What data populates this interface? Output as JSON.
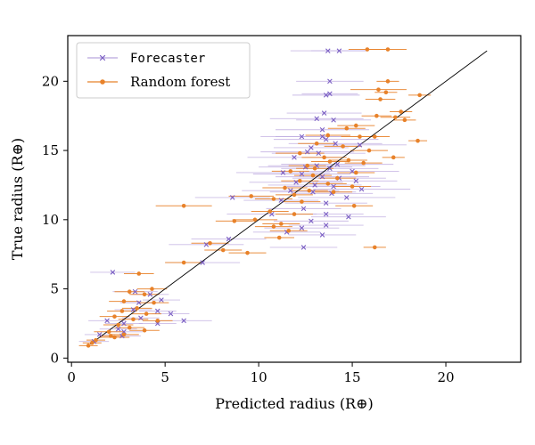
{
  "chart_data": {
    "type": "scatter",
    "xlabel": "Predicted radius (R⊕)",
    "ylabel": "True radius (R⊕)",
    "xlim": [
      -0.2,
      24.0
    ],
    "ylim": [
      -0.3,
      23.3
    ],
    "xticks": [
      0,
      5,
      10,
      15,
      20
    ],
    "yticks": [
      0,
      5,
      10,
      15,
      20
    ],
    "grid": false,
    "legend_position": "top-left",
    "diagonal_line": {
      "from": [
        1,
        1
      ],
      "to": [
        22.2,
        22.2
      ],
      "color": "#000000"
    },
    "series": [
      {
        "name": "Forecaster",
        "marker": "x",
        "color": "#7b5fc4",
        "errorbar_color": "#b9a6de",
        "points": [
          [
            13.7,
            22.2,
            2.0
          ],
          [
            14.3,
            22.2,
            1.5
          ],
          [
            13.8,
            20.0,
            1.8
          ],
          [
            13.6,
            19.0,
            1.8
          ],
          [
            13.8,
            19.1,
            1.5
          ],
          [
            13.5,
            17.7,
            2.0
          ],
          [
            13.1,
            17.3,
            2.5
          ],
          [
            14.0,
            17.2,
            2.0
          ],
          [
            13.4,
            16.5,
            2.5
          ],
          [
            12.3,
            16.0,
            2.2
          ],
          [
            13.4,
            16.0,
            2.5
          ],
          [
            13.6,
            15.8,
            2.8
          ],
          [
            14.1,
            15.5,
            2.5
          ],
          [
            12.8,
            15.2,
            2.0
          ],
          [
            15.4,
            15.4,
            2.5
          ],
          [
            12.6,
            14.9,
            2.5
          ],
          [
            13.2,
            14.8,
            2.5
          ],
          [
            11.9,
            14.5,
            2.5
          ],
          [
            14.2,
            14.0,
            3.0
          ],
          [
            13.1,
            13.9,
            2.6
          ],
          [
            12.5,
            13.8,
            2.5
          ],
          [
            13.8,
            13.7,
            2.6
          ],
          [
            15.0,
            13.5,
            2.5
          ],
          [
            11.3,
            13.4,
            2.5
          ],
          [
            12.3,
            13.3,
            2.6
          ],
          [
            13.4,
            13.1,
            2.5
          ],
          [
            14.3,
            13.0,
            2.5
          ],
          [
            15.2,
            12.8,
            2.2
          ],
          [
            12.0,
            12.7,
            2.5
          ],
          [
            13.0,
            12.5,
            2.5
          ],
          [
            14.0,
            12.4,
            2.5
          ],
          [
            15.5,
            12.2,
            2.6
          ],
          [
            11.7,
            12.1,
            2.6
          ],
          [
            12.9,
            12.0,
            2.3
          ],
          [
            13.9,
            11.9,
            2.2
          ],
          [
            14.7,
            11.6,
            2.6
          ],
          [
            8.6,
            11.6,
            2.0
          ],
          [
            11.2,
            11.4,
            2.0
          ],
          [
            13.6,
            11.2,
            2.2
          ],
          [
            12.4,
            10.8,
            2.0
          ],
          [
            10.7,
            10.4,
            2.4
          ],
          [
            13.6,
            10.4,
            2.0
          ],
          [
            14.8,
            10.2,
            2.0
          ],
          [
            12.8,
            9.9,
            2.0
          ],
          [
            13.6,
            9.6,
            2.0
          ],
          [
            12.3,
            9.4,
            2.0
          ],
          [
            11.5,
            9.1,
            1.8
          ],
          [
            13.4,
            8.9,
            1.8
          ],
          [
            12.4,
            8.0,
            1.8
          ],
          [
            8.4,
            8.6,
            2.0
          ],
          [
            7.2,
            8.2,
            2.0
          ],
          [
            7.0,
            6.9,
            2.0
          ],
          [
            2.2,
            6.2,
            1.2
          ],
          [
            3.4,
            4.8,
            1.2
          ],
          [
            4.2,
            4.6,
            1.0
          ],
          [
            4.8,
            4.2,
            1.0
          ],
          [
            3.6,
            4.0,
            1.0
          ],
          [
            3.3,
            3.5,
            1.0
          ],
          [
            4.6,
            3.4,
            1.0
          ],
          [
            5.3,
            3.2,
            1.0
          ],
          [
            1.9,
            2.7,
            1.0
          ],
          [
            3.7,
            2.9,
            1.0
          ],
          [
            6.0,
            2.7,
            1.5
          ],
          [
            2.8,
            2.5,
            1.0
          ],
          [
            4.6,
            2.5,
            1.0
          ],
          [
            2.5,
            2.1,
            1.0
          ],
          [
            2.8,
            1.9,
            1.0
          ],
          [
            1.5,
            1.7,
            0.8
          ],
          [
            2.7,
            1.6,
            1.0
          ],
          [
            1.2,
            1.2,
            0.8
          ]
        ]
      },
      {
        "name": "Random forest",
        "marker": "dot",
        "color": "#e8822a",
        "errorbar_color": "#e8822a",
        "points": [
          [
            15.8,
            22.3,
            1.0
          ],
          [
            16.9,
            22.3,
            1.0
          ],
          [
            16.9,
            20.0,
            0.6
          ],
          [
            16.4,
            19.4,
            1.5
          ],
          [
            16.8,
            19.2,
            0.6
          ],
          [
            18.6,
            19.0,
            0.6
          ],
          [
            16.5,
            18.7,
            0.8
          ],
          [
            17.6,
            17.8,
            0.6
          ],
          [
            17.3,
            17.4,
            0.8
          ],
          [
            16.3,
            17.5,
            0.8
          ],
          [
            17.8,
            17.2,
            0.6
          ],
          [
            15.2,
            16.8,
            1.0
          ],
          [
            14.7,
            16.6,
            1.0
          ],
          [
            13.7,
            16.1,
            1.2
          ],
          [
            15.4,
            16.0,
            1.0
          ],
          [
            16.2,
            16.0,
            0.8
          ],
          [
            13.1,
            15.5,
            1.0
          ],
          [
            14.5,
            15.3,
            1.0
          ],
          [
            18.5,
            15.7,
            0.5
          ],
          [
            15.9,
            15.0,
            1.0
          ],
          [
            12.2,
            14.8,
            1.3
          ],
          [
            13.5,
            14.5,
            1.2
          ],
          [
            14.8,
            14.3,
            1.0
          ],
          [
            17.2,
            14.5,
            0.6
          ],
          [
            13.8,
            14.2,
            1.0
          ],
          [
            15.6,
            14.1,
            1.0
          ],
          [
            12.6,
            13.9,
            1.0
          ],
          [
            13.0,
            13.7,
            1.0
          ],
          [
            11.7,
            13.5,
            1.0
          ],
          [
            15.2,
            13.4,
            1.0
          ],
          [
            12.9,
            13.2,
            1.0
          ],
          [
            14.2,
            13.0,
            1.0
          ],
          [
            12.2,
            12.8,
            1.0
          ],
          [
            13.7,
            12.6,
            1.0
          ],
          [
            15.0,
            12.4,
            1.0
          ],
          [
            11.4,
            12.3,
            1.2
          ],
          [
            12.7,
            12.1,
            1.0
          ],
          [
            14.0,
            12.0,
            1.0
          ],
          [
            11.9,
            11.8,
            1.0
          ],
          [
            9.6,
            11.7,
            1.2
          ],
          [
            10.8,
            11.5,
            1.0
          ],
          [
            12.3,
            11.3,
            1.0
          ],
          [
            15.1,
            11.0,
            1.0
          ],
          [
            6.0,
            11.0,
            1.5
          ],
          [
            10.6,
            10.6,
            1.0
          ],
          [
            11.9,
            10.4,
            1.0
          ],
          [
            9.8,
            10.0,
            1.2
          ],
          [
            8.7,
            9.9,
            1.0
          ],
          [
            11.2,
            9.7,
            1.0
          ],
          [
            10.8,
            9.5,
            1.0
          ],
          [
            11.6,
            9.2,
            1.0
          ],
          [
            11.1,
            8.7,
            0.8
          ],
          [
            16.2,
            8.0,
            0.6
          ],
          [
            7.4,
            8.3,
            1.0
          ],
          [
            8.1,
            7.8,
            1.0
          ],
          [
            9.4,
            7.6,
            1.0
          ],
          [
            6.0,
            6.9,
            1.0
          ],
          [
            3.6,
            6.1,
            0.8
          ],
          [
            4.3,
            5.0,
            0.8
          ],
          [
            3.1,
            4.8,
            0.8
          ],
          [
            3.9,
            4.6,
            0.8
          ],
          [
            2.8,
            4.1,
            0.8
          ],
          [
            4.4,
            4.0,
            0.8
          ],
          [
            3.5,
            3.6,
            0.8
          ],
          [
            2.7,
            3.4,
            0.8
          ],
          [
            4.0,
            3.2,
            0.8
          ],
          [
            2.3,
            3.0,
            0.8
          ],
          [
            3.3,
            2.8,
            0.8
          ],
          [
            4.6,
            2.7,
            0.8
          ],
          [
            2.5,
            2.4,
            0.8
          ],
          [
            3.1,
            2.2,
            0.8
          ],
          [
            3.9,
            2.0,
            0.8
          ],
          [
            2.0,
            1.9,
            0.8
          ],
          [
            2.8,
            1.7,
            0.8
          ],
          [
            2.3,
            1.5,
            0.8
          ],
          [
            1.3,
            1.3,
            0.5
          ],
          [
            1.1,
            1.1,
            0.5
          ],
          [
            0.9,
            0.9,
            0.5
          ],
          [
            2.1,
            1.6,
            0.6
          ]
        ]
      }
    ]
  }
}
